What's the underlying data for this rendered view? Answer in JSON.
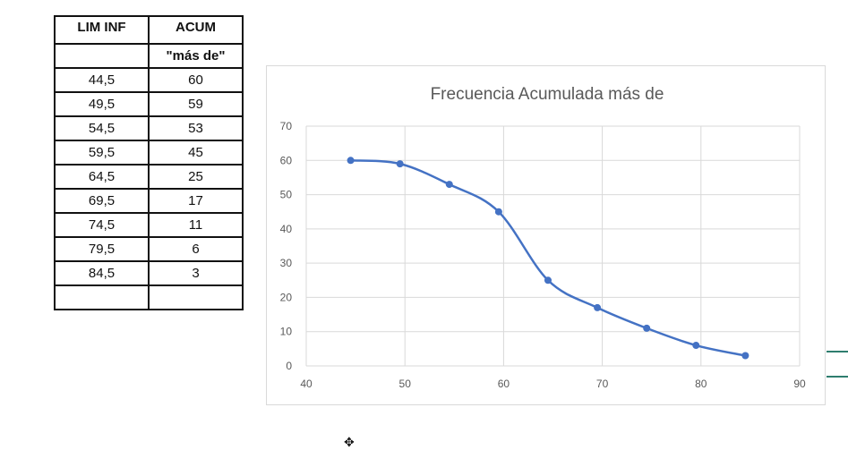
{
  "table": {
    "header": {
      "col1": "LIM INF",
      "col2": "ACUM"
    },
    "subheader": {
      "col1": "",
      "col2": "\"más de\""
    },
    "rows": [
      {
        "lim": "44,5",
        "acum": "60"
      },
      {
        "lim": "49,5",
        "acum": "59"
      },
      {
        "lim": "54,5",
        "acum": "53"
      },
      {
        "lim": "59,5",
        "acum": "45"
      },
      {
        "lim": "64,5",
        "acum": "25"
      },
      {
        "lim": "69,5",
        "acum": "17"
      },
      {
        "lim": "74,5",
        "acum": "11"
      },
      {
        "lim": "79,5",
        "acum": "6"
      },
      {
        "lim": "84,5",
        "acum": "3"
      },
      {
        "lim": "",
        "acum": ""
      }
    ]
  },
  "chart_data": {
    "type": "line",
    "title": "Frecuencia Acumulada más de",
    "xlabel": "",
    "ylabel": "",
    "xlim": [
      40,
      90
    ],
    "ylim": [
      0,
      70
    ],
    "xticks": [
      40,
      50,
      60,
      70,
      80,
      90
    ],
    "yticks": [
      0,
      10,
      20,
      30,
      40,
      50,
      60,
      70
    ],
    "grid": true,
    "series": [
      {
        "x": [
          44.5,
          49.5,
          54.5,
          59.5,
          64.5,
          69.5,
          74.5,
          79.5,
          84.5
        ],
        "y": [
          60,
          59,
          53,
          45,
          25,
          17,
          11,
          6,
          3
        ],
        "color": "#4472c4",
        "smooth": true,
        "markers": true
      }
    ]
  },
  "icons": {
    "cursor": "move-cursor-icon"
  }
}
